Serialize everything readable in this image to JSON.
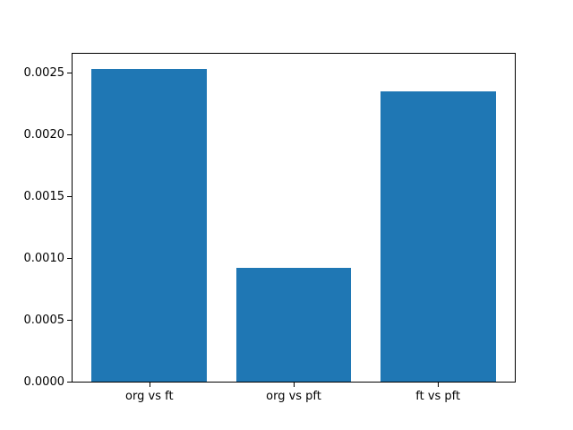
{
  "chart_data": {
    "type": "bar",
    "title": "",
    "xlabel": "",
    "ylabel": "",
    "categories": [
      "org vs ft",
      "org vs pft",
      "ft vs pft"
    ],
    "values": [
      0.00254,
      0.00093,
      0.00236
    ],
    "bar_color": "#1f77b4",
    "background_color": "#ffffff",
    "axis_color": "#000000",
    "ylim": [
      0,
      0.00267
    ],
    "yticks": [
      0.0,
      0.0005,
      0.001,
      0.0015,
      0.002,
      0.0025
    ],
    "ytick_labels": [
      "0.0000",
      "0.0005",
      "0.0010",
      "0.0015",
      "0.0020",
      "0.0025"
    ],
    "grid": false,
    "legend_position": "none"
  }
}
